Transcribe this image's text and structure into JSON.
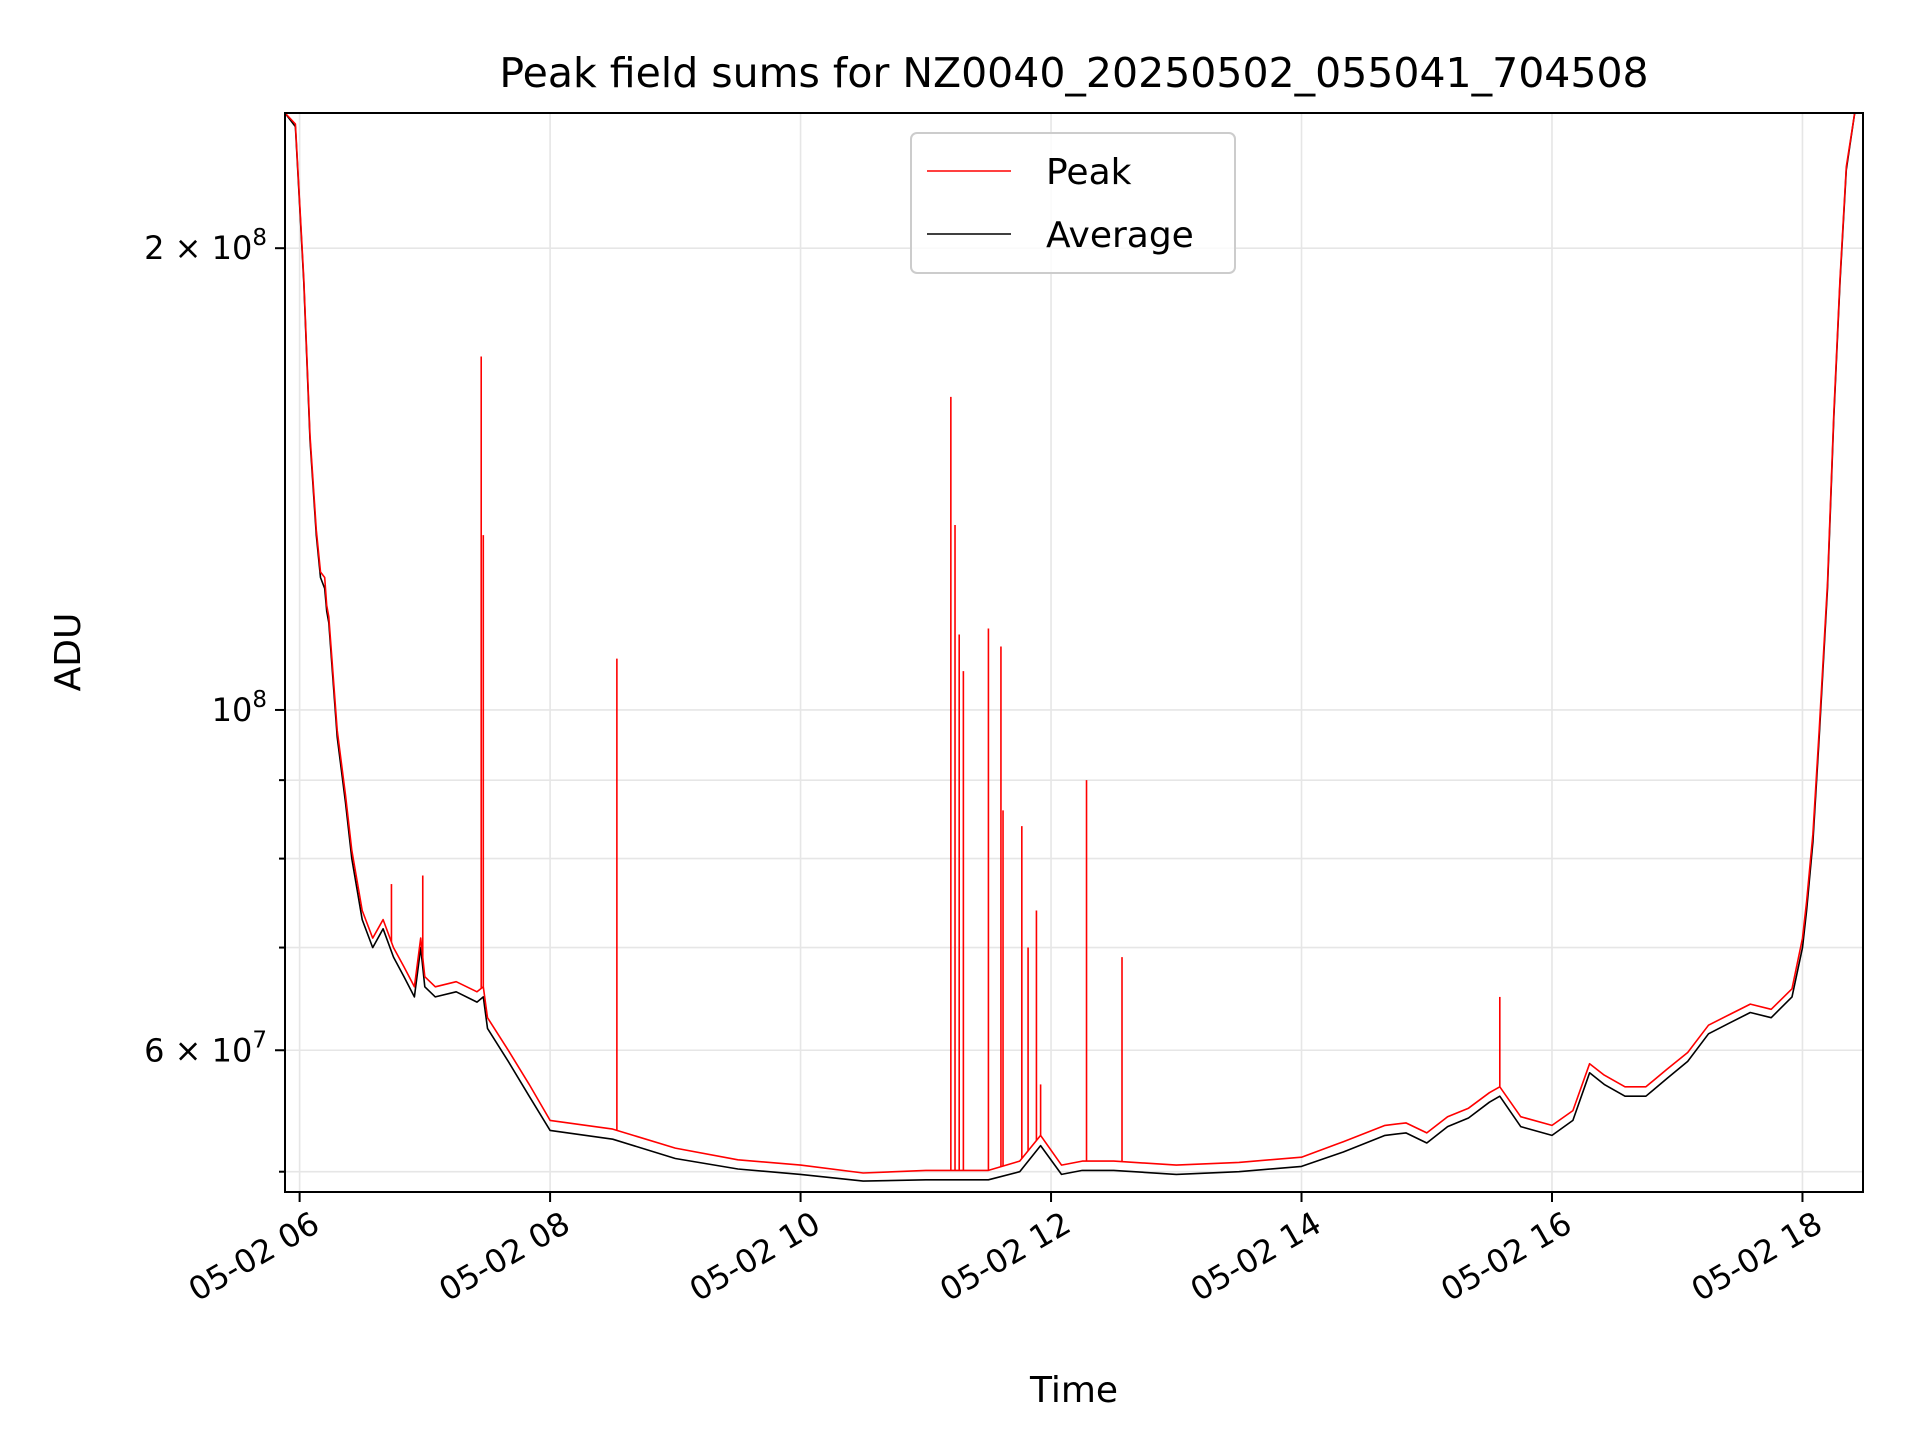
{
  "chart_data": {
    "type": "line",
    "title": "Peak field sums for NZ0040_20250502_055041_704508",
    "xlabel": "Time",
    "ylabel": "ADU",
    "yscale": "log",
    "xlim": [
      "2025-05-02 05:53",
      "2025-05-02 18:29"
    ],
    "ylim": [
      48500000,
      245000000
    ],
    "grid": true,
    "legend_position": "top-center",
    "x_tick_labels": [
      "05-02 06",
      "05-02 08",
      "05-02 10",
      "05-02 12",
      "05-02 14",
      "05-02 16",
      "05-02 18"
    ],
    "y_tick_labels": [
      {
        "value": 200000000,
        "mantissa": "2",
        "times": "×",
        "exp": "8"
      },
      {
        "value": 100000000,
        "mantissa": "",
        "times": "",
        "exp": "8"
      },
      {
        "value": 60000000,
        "mantissa": "6",
        "times": "×",
        "exp": "7"
      }
    ],
    "colors": {
      "peak": "#ff0000",
      "average": "#000000",
      "grid": "#e6e6e6"
    },
    "series": [
      {
        "name": "Average",
        "color": "#000000",
        "x": [
          "2025-05-02 05:53",
          "2025-05-02 05:58",
          "2025-05-02 06:02",
          "2025-05-02 06:05",
          "2025-05-02 06:08",
          "2025-05-02 06:10",
          "2025-05-02 06:12",
          "2025-05-02 06:13",
          "2025-05-02 06:14",
          "2025-05-02 06:18",
          "2025-05-02 06:22",
          "2025-05-02 06:25",
          "2025-05-02 06:30",
          "2025-05-02 06:35",
          "2025-05-02 06:40",
          "2025-05-02 06:45",
          "2025-05-02 06:50",
          "2025-05-02 06:55",
          "2025-05-02 06:58",
          "2025-05-02 07:00",
          "2025-05-02 07:05",
          "2025-05-02 07:15",
          "2025-05-02 07:25",
          "2025-05-02 07:28",
          "2025-05-02 07:30",
          "2025-05-02 07:40",
          "2025-05-02 07:50",
          "2025-05-02 08:00",
          "2025-05-02 08:30",
          "2025-05-02 09:00",
          "2025-05-02 09:30",
          "2025-05-02 10:00",
          "2025-05-02 10:30",
          "2025-05-02 11:00",
          "2025-05-02 11:30",
          "2025-05-02 11:45",
          "2025-05-02 11:55",
          "2025-05-02 12:05",
          "2025-05-02 12:15",
          "2025-05-02 12:30",
          "2025-05-02 13:00",
          "2025-05-02 13:30",
          "2025-05-02 14:00",
          "2025-05-02 14:20",
          "2025-05-02 14:40",
          "2025-05-02 14:50",
          "2025-05-02 15:00",
          "2025-05-02 15:10",
          "2025-05-02 15:20",
          "2025-05-02 15:30",
          "2025-05-02 15:35",
          "2025-05-02 15:45",
          "2025-05-02 16:00",
          "2025-05-02 16:10",
          "2025-05-02 16:18",
          "2025-05-02 16:25",
          "2025-05-02 16:35",
          "2025-05-02 16:45",
          "2025-05-02 16:55",
          "2025-05-02 17:05",
          "2025-05-02 17:15",
          "2025-05-02 17:25",
          "2025-05-02 17:35",
          "2025-05-02 17:45",
          "2025-05-02 17:55",
          "2025-05-02 18:00",
          "2025-05-02 18:02",
          "2025-05-02 18:05",
          "2025-05-02 18:08",
          "2025-05-02 18:12",
          "2025-05-02 18:15",
          "2025-05-02 18:18",
          "2025-05-02 18:21",
          "2025-05-02 18:25",
          "2025-05-02 18:29"
        ],
        "y": [
          245000000,
          240000000,
          190000000,
          150000000,
          130000000,
          122000000,
          120000000,
          116000000,
          114000000,
          96000000,
          87000000,
          80000000,
          73000000,
          70000000,
          72000000,
          69000000,
          67000000,
          65000000,
          70000000,
          66000000,
          65000000,
          65500000,
          64500000,
          65000000,
          62000000,
          59000000,
          56000000,
          53200000,
          52500000,
          51000000,
          50200000,
          49800000,
          49300000,
          49400000,
          49400000,
          50000000,
          52000000,
          49800000,
          50100000,
          50100000,
          49800000,
          50000000,
          50400000,
          51500000,
          52800000,
          53000000,
          52200000,
          53500000,
          54200000,
          55500000,
          56000000,
          53500000,
          52800000,
          54000000,
          58000000,
          57000000,
          56000000,
          56000000,
          57500000,
          59000000,
          61500000,
          62500000,
          63500000,
          63000000,
          65000000,
          70000000,
          74000000,
          82000000,
          96000000,
          120000000,
          155000000,
          190000000,
          225000000,
          245000000,
          245000000
        ]
      },
      {
        "name": "Peak",
        "color": "#ff0000",
        "x": [
          "2025-05-02 05:53",
          "2025-05-02 05:58",
          "2025-05-02 06:02",
          "2025-05-02 06:05",
          "2025-05-02 06:08",
          "2025-05-02 06:10",
          "2025-05-02 06:12",
          "2025-05-02 06:13",
          "2025-05-02 06:14",
          "2025-05-02 06:18",
          "2025-05-02 06:22",
          "2025-05-02 06:25",
          "2025-05-02 06:30",
          "2025-05-02 06:35",
          "2025-05-02 06:40",
          "2025-05-02 06:45",
          "2025-05-02 06:50",
          "2025-05-02 06:55",
          "2025-05-02 06:58",
          "2025-05-02 07:00",
          "2025-05-02 07:05",
          "2025-05-02 07:15",
          "2025-05-02 07:25",
          "2025-05-02 07:28",
          "2025-05-02 07:30",
          "2025-05-02 07:40",
          "2025-05-02 07:50",
          "2025-05-02 08:00",
          "2025-05-02 08:30",
          "2025-05-02 09:00",
          "2025-05-02 09:30",
          "2025-05-02 10:00",
          "2025-05-02 10:30",
          "2025-05-02 11:00",
          "2025-05-02 11:30",
          "2025-05-02 11:45",
          "2025-05-02 11:55",
          "2025-05-02 12:05",
          "2025-05-02 12:15",
          "2025-05-02 12:30",
          "2025-05-02 13:00",
          "2025-05-02 13:30",
          "2025-05-02 14:00",
          "2025-05-02 14:20",
          "2025-05-02 14:40",
          "2025-05-02 14:50",
          "2025-05-02 15:00",
          "2025-05-02 15:10",
          "2025-05-02 15:20",
          "2025-05-02 15:30",
          "2025-05-02 15:35",
          "2025-05-02 15:45",
          "2025-05-02 16:00",
          "2025-05-02 16:10",
          "2025-05-02 16:18",
          "2025-05-02 16:25",
          "2025-05-02 16:35",
          "2025-05-02 16:45",
          "2025-05-02 16:55",
          "2025-05-02 17:05",
          "2025-05-02 17:15",
          "2025-05-02 17:25",
          "2025-05-02 17:35",
          "2025-05-02 17:45",
          "2025-05-02 17:55",
          "2025-05-02 18:00",
          "2025-05-02 18:02",
          "2025-05-02 18:05",
          "2025-05-02 18:08",
          "2025-05-02 18:12",
          "2025-05-02 18:15",
          "2025-05-02 18:18",
          "2025-05-02 18:21",
          "2025-05-02 18:25",
          "2025-05-02 18:29"
        ],
        "y": [
          245000000,
          241000000,
          191000000,
          151000000,
          131000000,
          123000000,
          122000000,
          117000000,
          115000000,
          97000000,
          88000000,
          81000000,
          74000000,
          71000000,
          73000000,
          70000000,
          68000000,
          66000000,
          71000000,
          67000000,
          66000000,
          66500000,
          65500000,
          66000000,
          63000000,
          60000000,
          57000000,
          54000000,
          53300000,
          51800000,
          50900000,
          50500000,
          49900000,
          50100000,
          50100000,
          50800000,
          52800000,
          50500000,
          50800000,
          50800000,
          50500000,
          50700000,
          51100000,
          52300000,
          53600000,
          53800000,
          53000000,
          54300000,
          55000000,
          56300000,
          56800000,
          54300000,
          53600000,
          54800000,
          58800000,
          57800000,
          56800000,
          56800000,
          58300000,
          59800000,
          62300000,
          63300000,
          64300000,
          63800000,
          65800000,
          71000000,
          75000000,
          83000000,
          97000000,
          121000000,
          156000000,
          191000000,
          226000000,
          245000000,
          245000000
        ],
        "spikes": [
          {
            "x": "2025-05-02 06:44",
            "y": 77000000
          },
          {
            "x": "2025-05-02 06:59",
            "y": 78000000
          },
          {
            "x": "2025-05-02 07:27",
            "y": 170000000
          },
          {
            "x": "2025-05-02 07:28",
            "y": 130000000
          },
          {
            "x": "2025-05-02 08:32",
            "y": 108000000
          },
          {
            "x": "2025-05-02 11:12",
            "y": 160000000
          },
          {
            "x": "2025-05-02 11:14",
            "y": 132000000
          },
          {
            "x": "2025-05-02 11:16",
            "y": 112000000
          },
          {
            "x": "2025-05-02 11:18",
            "y": 106000000
          },
          {
            "x": "2025-05-02 11:30",
            "y": 113000000
          },
          {
            "x": "2025-05-02 11:36",
            "y": 110000000
          },
          {
            "x": "2025-05-02 11:37",
            "y": 86000000
          },
          {
            "x": "2025-05-02 11:46",
            "y": 84000000
          },
          {
            "x": "2025-05-02 11:49",
            "y": 70000000
          },
          {
            "x": "2025-05-02 11:53",
            "y": 74000000
          },
          {
            "x": "2025-05-02 11:55",
            "y": 57000000
          },
          {
            "x": "2025-05-02 12:17",
            "y": 90000000
          },
          {
            "x": "2025-05-02 12:34",
            "y": 69000000
          },
          {
            "x": "2025-05-02 15:35",
            "y": 65000000
          }
        ]
      }
    ]
  }
}
